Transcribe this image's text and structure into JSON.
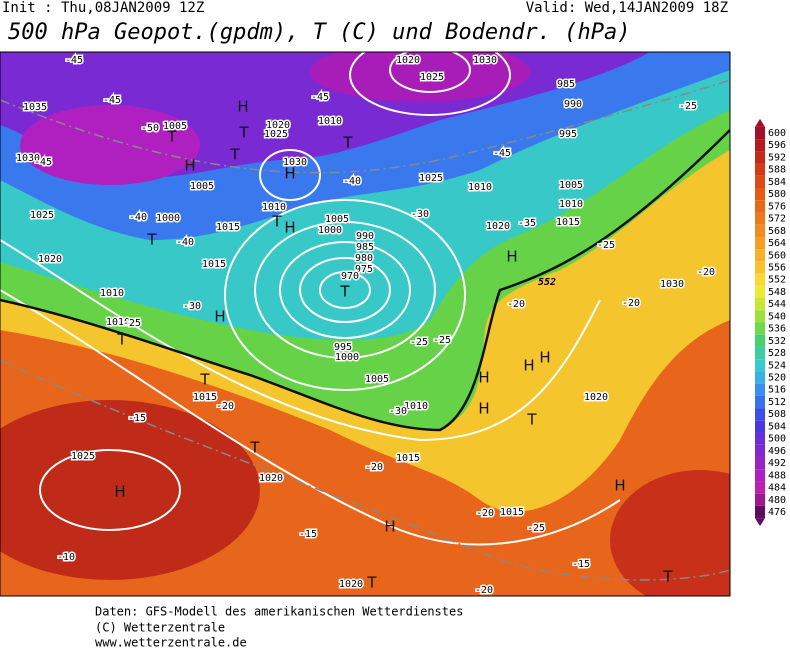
{
  "header": {
    "init": "Init : Thu,08JAN2009 12Z",
    "valid": "Valid: Wed,14JAN2009 18Z",
    "title": "500 hPa Geopot.(gpdm), T (C) und Bodendr. (hPa)"
  },
  "colorbar": {
    "ticks": [
      600,
      596,
      592,
      588,
      584,
      580,
      576,
      572,
      568,
      564,
      560,
      556,
      552,
      548,
      544,
      540,
      536,
      532,
      528,
      524,
      520,
      516,
      512,
      508,
      504,
      500,
      496,
      492,
      488,
      484,
      480,
      476
    ],
    "colors": [
      "#a0102a",
      "#b81a20",
      "#c82818",
      "#d43a14",
      "#de4a14",
      "#e45a16",
      "#e86a18",
      "#ec7a1c",
      "#f08c20",
      "#f49e24",
      "#f8b028",
      "#fcc22c",
      "#fcd834",
      "#ecec34",
      "#c8e834",
      "#9ee03c",
      "#6ed84c",
      "#48d070",
      "#3cd0a0",
      "#38c8d0",
      "#38b0e8",
      "#3890f0",
      "#3870f0",
      "#3c50e8",
      "#4c38e0",
      "#6830d8",
      "#8028d0",
      "#9824c8",
      "#b020c0",
      "#c020b0",
      "#a01890",
      "#600c60"
    ]
  },
  "map": {
    "pressure_labels": [
      1035,
      1030,
      1025,
      1020,
      1010,
      1010,
      1005,
      1005,
      1000,
      1015,
      1015,
      1025,
      1030,
      1010,
      1005,
      990,
      985,
      980,
      975,
      970,
      995,
      1000,
      1005,
      1010,
      1015,
      1010,
      1020,
      1025,
      1000,
      1005,
      1010,
      1015,
      995,
      990,
      985,
      1030,
      1020,
      1025,
      1010,
      1020,
      1015,
      1030,
      1020,
      1015,
      1020,
      1025,
      1020
    ],
    "temperature_labels": [
      -45,
      -45,
      -50,
      -45,
      -45,
      -40,
      -40,
      -40,
      -45,
      -35,
      -30,
      -30,
      -25,
      -25,
      -30,
      -25,
      -20,
      -20,
      -20,
      -25,
      -15,
      -20,
      -20,
      -15,
      -10,
      -20,
      -25,
      -15,
      -20,
      -25
    ],
    "centers": [
      "H",
      "T",
      "T",
      "H",
      "T",
      "H",
      "T",
      "H",
      "T",
      "T",
      "H",
      "H",
      "T",
      "H",
      "H",
      "H",
      "H",
      "T",
      "T",
      "H",
      "T",
      "H",
      "T",
      "H",
      "T",
      "T"
    ],
    "contour_label": 552
  },
  "footer": {
    "lines": [
      "Daten: GFS-Modell des amerikanischen Wetterdienstes",
      "(C) Wetterzentrale",
      "www.wetterzentrale.de"
    ]
  }
}
